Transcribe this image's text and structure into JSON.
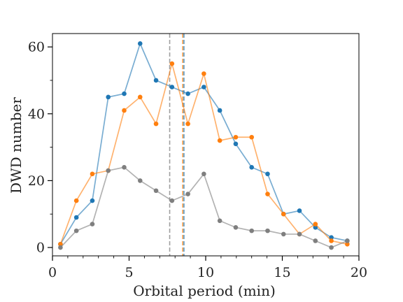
{
  "chart_data": {
    "type": "line",
    "xlabel": "Orbital period (min)",
    "ylabel": "DWD number",
    "xlim": [
      0,
      20
    ],
    "ylim": [
      -2.5,
      64
    ],
    "x_ticks": [
      0,
      5,
      10,
      15,
      20
    ],
    "x_tick_labels": [
      "0",
      "5",
      "10",
      "15",
      "20"
    ],
    "y_ticks": [
      0,
      20,
      40,
      60
    ],
    "y_tick_labels": [
      "0",
      "20",
      "40",
      "60"
    ],
    "grid": false,
    "legend": "none",
    "series": [
      {
        "color": "#1f77b4",
        "x": [
          0.52,
          1.56,
          2.6,
          3.64,
          4.68,
          5.72,
          6.76,
          7.8,
          8.84,
          9.88,
          10.92,
          11.96,
          13.0,
          14.04,
          15.08,
          16.12,
          17.16,
          18.2,
          19.24
        ],
        "values": [
          1,
          9,
          14,
          45,
          46,
          61,
          50,
          48,
          46,
          48,
          41,
          31,
          24,
          22,
          10,
          11,
          6,
          3,
          2
        ]
      },
      {
        "color": "#ff7f0e",
        "x": [
          0.52,
          1.56,
          2.6,
          3.64,
          4.68,
          5.72,
          6.76,
          7.8,
          8.84,
          9.88,
          10.92,
          11.96,
          13.0,
          14.04,
          15.08,
          16.12,
          17.16,
          18.2,
          19.24
        ],
        "values": [
          1,
          14,
          22,
          23,
          41,
          45,
          37,
          55,
          37,
          52,
          32,
          33,
          33,
          16,
          10,
          4,
          7,
          2,
          1
        ]
      },
      {
        "color": "#7f7f7f",
        "x": [
          0.52,
          1.56,
          2.6,
          3.64,
          4.68,
          5.72,
          6.76,
          7.8,
          8.84,
          9.88,
          10.92,
          11.96,
          13.0,
          14.04,
          15.08,
          16.12,
          17.16,
          18.2,
          19.24
        ],
        "values": [
          0,
          5,
          7,
          23,
          24,
          20,
          17,
          14,
          16,
          22,
          8,
          6,
          5,
          5,
          4,
          4,
          2,
          0,
          2
        ]
      }
    ],
    "vlines": [
      {
        "x": 7.65,
        "color": "#7f7f7f"
      },
      {
        "x": 8.5,
        "color": "#ff7f0e"
      },
      {
        "x": 8.58,
        "color": "#1f77b4"
      }
    ]
  }
}
